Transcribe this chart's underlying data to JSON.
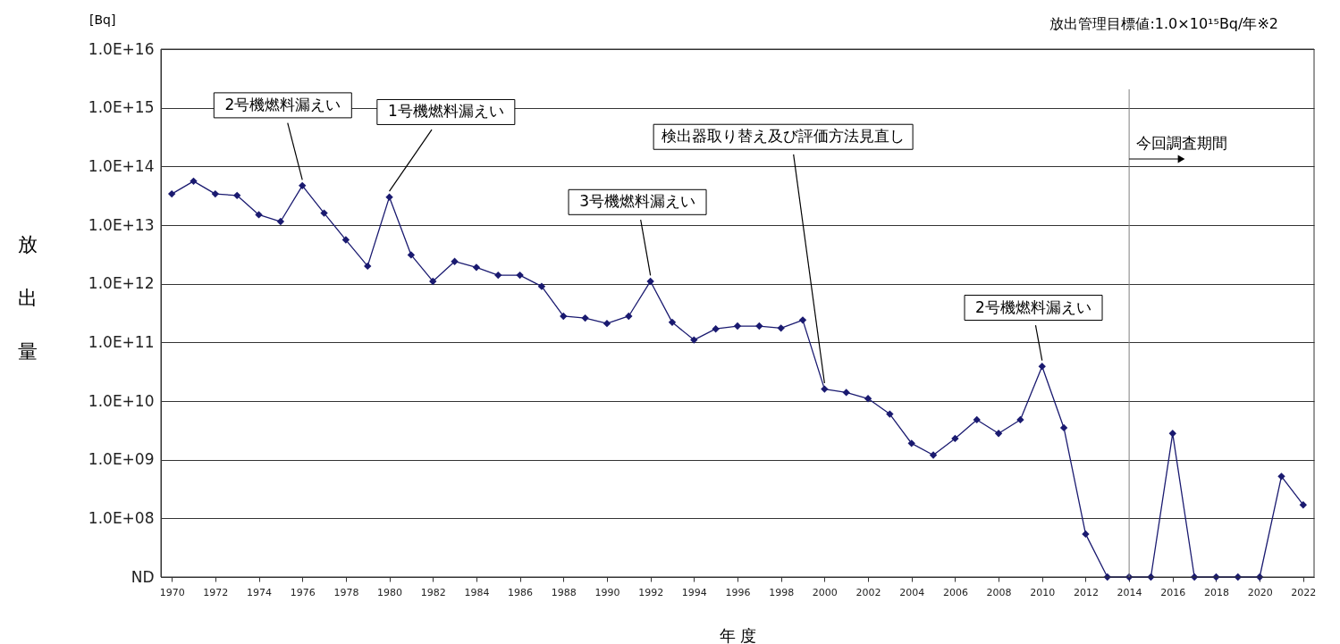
{
  "chart_data": {
    "type": "line",
    "xlabel": "年 度",
    "ylabel": "放出量",
    "x": [
      1970,
      1971,
      1972,
      1973,
      1974,
      1975,
      1976,
      1977,
      1978,
      1979,
      1980,
      1981,
      1982,
      1983,
      1984,
      1985,
      1986,
      1987,
      1988,
      1989,
      1990,
      1991,
      1992,
      1993,
      1994,
      1995,
      1996,
      1997,
      1998,
      1999,
      2000,
      2001,
      2002,
      2003,
      2004,
      2005,
      2006,
      2007,
      2008,
      2009,
      2010,
      2011,
      2012,
      2013,
      2014,
      2015,
      2016,
      2017,
      2018,
      2019,
      2020,
      2021,
      2022
    ],
    "series": [
      {
        "color": "#1a1a70",
        "values": [
          34000000000000.0,
          56000000000000.0,
          34000000000000.0,
          32000000000000.0,
          15000000000000.0,
          11500000000000.0,
          47000000000000.0,
          16000000000000.0,
          5600000000000.0,
          2000000000000.0,
          30000000000000.0,
          3100000000000.0,
          1100000000000.0,
          2400000000000.0,
          1900000000000.0,
          1400000000000.0,
          1400000000000.0,
          900000000000.0,
          280000000000.0,
          260000000000.0,
          210000000000.0,
          280000000000.0,
          1100000000000.0,
          220000000000.0,
          110000000000.0,
          170000000000.0,
          190000000000.0,
          190000000000.0,
          175000000000.0,
          240000000000.0,
          16000000000.0,
          14000000000.0,
          11000000000.0,
          6000000000.0,
          1900000000.0,
          1200000000.0,
          2300000000.0,
          4800000000.0,
          2800000000.0,
          4800000000.0,
          39000000000.0,
          3500000000.0,
          54000000.0,
          10000000.0,
          10000000.0,
          10000000.0,
          2800000000.0,
          10000000.0,
          10000000.0,
          10000000.0,
          10000000.0,
          520000000.0,
          170000000.0
        ]
      }
    ],
    "log": true,
    "marker": "diamond",
    "grid": "y",
    "xlim": [
      1969.5,
      2022.5
    ],
    "xticks": [
      1970,
      1972,
      1974,
      1976,
      1978,
      1980,
      1982,
      1984,
      1986,
      1988,
      1990,
      1992,
      1994,
      1996,
      1998,
      2000,
      2002,
      2004,
      2006,
      2008,
      2010,
      2012,
      2014,
      2016,
      2018,
      2020,
      2022
    ],
    "ylim": [
      10000000.0,
      1e+16
    ],
    "yticks": [
      {
        "value": 10000000.0,
        "label": "ND"
      },
      {
        "value": 100000000.0,
        "label": "1.0E+08"
      },
      {
        "value": 1000000000.0,
        "label": "1.0E+09"
      },
      {
        "value": 10000000000.0,
        "label": "1.0E+10"
      },
      {
        "value": 100000000000.0,
        "label": "1.0E+11"
      },
      {
        "value": 1000000000000.0,
        "label": "1.0E+12"
      },
      {
        "value": 10000000000000.0,
        "label": "1.0E+13"
      },
      {
        "value": 100000000000000.0,
        "label": "1.0E+14"
      },
      {
        "value": 1000000000000000.0,
        "label": "1.0E+15"
      },
      {
        "value": 1e+16,
        "label": "1.0E+16"
      }
    ],
    "ref_lines": [
      {
        "axis": "x",
        "value": 2014,
        "label": "今回調査期間",
        "color": "#808080"
      }
    ],
    "annotations": [
      "[Bq]",
      "放出管理目標値:1.0×10¹⁵Bq/年※2",
      {
        "text": "2号機燃料漏えい",
        "x": 1976,
        "y": 47000000000000.0
      },
      {
        "text": "1号機燃料漏えい",
        "x": 1980,
        "y": 30000000000000.0
      },
      {
        "text": "3号機燃料漏えい",
        "x": 1992,
        "y": 1100000000000.0
      },
      {
        "text": "検出器取り替え及び評価方法見直し",
        "x": 2000,
        "y": 16000000000.0
      },
      {
        "text": "2号機燃料漏えい",
        "x": 2010,
        "y": 39000000000.0
      }
    ]
  }
}
